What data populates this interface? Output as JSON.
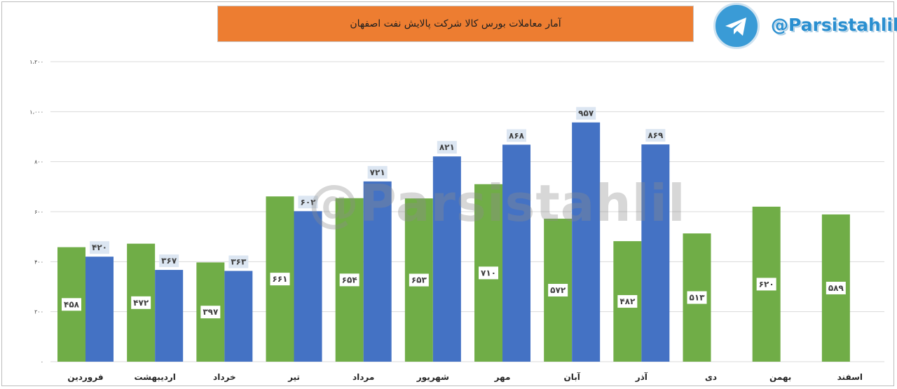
{
  "header": {
    "title": "آمار معاملات بورس کالا شرکت پالایش نفت اصفهان",
    "handle": "@Parsistahlil",
    "logo_icon": "telegram-icon",
    "watermark": "@Parsistahlil"
  },
  "chart_data": {
    "type": "bar",
    "title": "آمار معاملات بورس کالا شرکت پالایش نفت اصفهان",
    "categories": [
      "فروردین",
      "اردیبهشت",
      "خرداد",
      "تیر",
      "مرداد",
      "شهریور",
      "مهر",
      "آبان",
      "آذر",
      "دی",
      "بهمن",
      "اسفند"
    ],
    "series": [
      {
        "color": "#70ad47",
        "values": [
          458,
          472,
          397,
          661,
          654,
          653,
          710,
          572,
          482,
          513,
          620,
          589
        ],
        "labels": [
          "۴۵۸",
          "۴۷۲",
          "۳۹۷",
          "۶۶۱",
          "۶۵۴",
          "۶۵۳",
          "۷۱۰",
          "۵۷۲",
          "۴۸۲",
          "۵۱۳",
          "۶۲۰",
          "۵۸۹"
        ]
      },
      {
        "color": "#4472c4",
        "values": [
          420,
          367,
          363,
          602,
          721,
          821,
          868,
          957,
          869,
          null,
          null,
          null
        ],
        "labels": [
          "۴۲۰",
          "۳۶۷",
          "۳۶۳",
          "۶۰۲",
          "۷۲۱",
          "۸۲۱",
          "۸۶۸",
          "۹۵۷",
          "۸۶۹",
          null,
          null,
          null
        ]
      }
    ],
    "ylim": [
      0,
      1200
    ],
    "yticks": [
      0,
      200,
      400,
      600,
      800,
      1000,
      1200
    ],
    "ytick_labels": [
      "۰",
      "۲۰۰",
      "۴۰۰",
      "۶۰۰",
      "۸۰۰",
      "۱،۰۰۰",
      "۱،۲۰۰"
    ],
    "grid": true,
    "legend": "none"
  }
}
